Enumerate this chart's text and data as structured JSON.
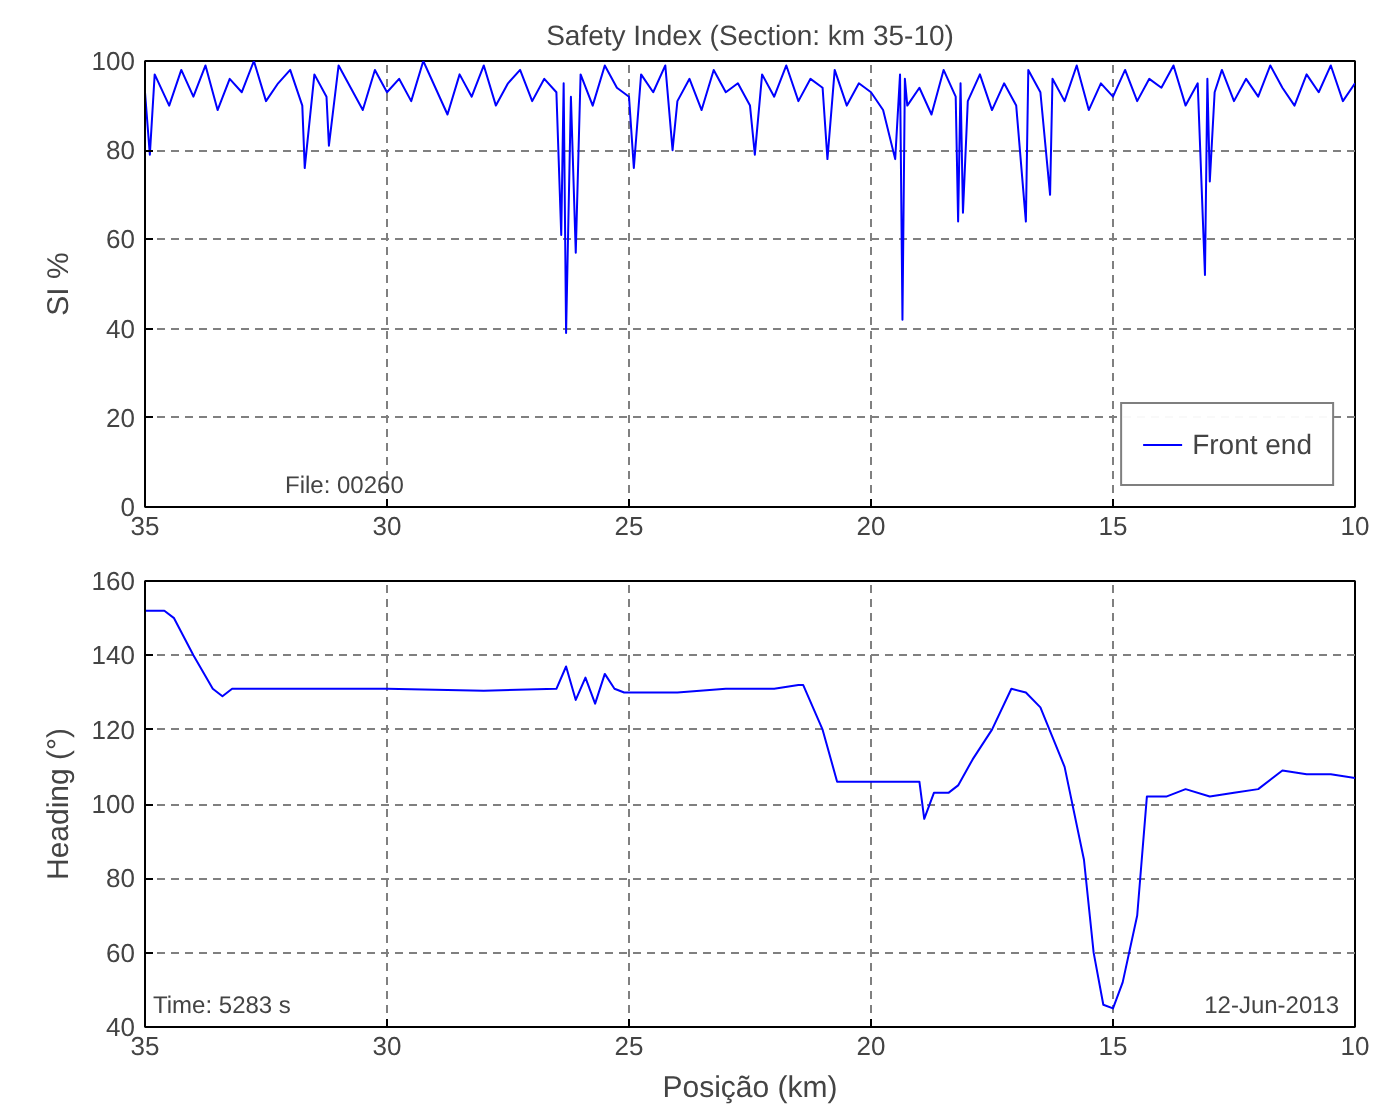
{
  "chart_data": [
    {
      "type": "line",
      "title": "Safety Index (Section: km 35-10)",
      "ylabel": "SI %",
      "xlim": [
        35,
        10
      ],
      "xticks": [
        35,
        30,
        25,
        20,
        15,
        10
      ],
      "ylim": [
        0,
        100
      ],
      "yticks": [
        0,
        20,
        40,
        60,
        80,
        100
      ],
      "grid": true,
      "legend": "bottom right",
      "line_style": "solid",
      "annotations": [
        "File: 00260"
      ],
      "series": [
        {
          "name": "Front end",
          "color": "#0000ff",
          "x": [
            35,
            34.9,
            34.8,
            34.5,
            34.25,
            34,
            33.75,
            33.5,
            33.25,
            33,
            32.75,
            32.5,
            32.25,
            32,
            31.75,
            31.7,
            31.5,
            31.25,
            31.2,
            31,
            30.75,
            30.5,
            30.25,
            30,
            29.75,
            29.5,
            29.25,
            29,
            28.75,
            28.5,
            28.25,
            28,
            27.75,
            27.5,
            27.25,
            27,
            26.75,
            26.5,
            26.4,
            26.35,
            26.3,
            26.2,
            26.1,
            26,
            25.75,
            25.5,
            25.25,
            25.0,
            24.9,
            24.75,
            24.5,
            24.25,
            24.1,
            24,
            23.75,
            23.5,
            23.25,
            23,
            22.75,
            22.5,
            22.4,
            22.25,
            22,
            21.75,
            21.5,
            21.25,
            21,
            20.9,
            20.75,
            20.5,
            20.25,
            20,
            19.75,
            19.5,
            19.4,
            19.35,
            19.3,
            19.25,
            19,
            18.75,
            18.5,
            18.25,
            18.2,
            18.15,
            18.1,
            18,
            17.75,
            17.5,
            17.25,
            17,
            16.8,
            16.75,
            16.5,
            16.3,
            16.25,
            16,
            15.75,
            15.5,
            15.25,
            15,
            14.75,
            14.5,
            14.25,
            14,
            13.75,
            13.5,
            13.25,
            13.1,
            13.05,
            13.0,
            12.9,
            12.75,
            12.5,
            12.25,
            12,
            11.75,
            11.5,
            11.25,
            11,
            10.75,
            10.5,
            10.25,
            10
          ],
          "values": [
            93,
            79,
            97,
            90,
            98,
            92,
            99,
            89,
            96,
            93,
            100,
            91,
            95,
            98,
            90,
            76,
            97,
            92,
            81,
            99,
            94,
            89,
            98,
            93,
            96,
            91,
            100,
            94,
            88,
            97,
            92,
            99,
            90,
            95,
            98,
            91,
            96,
            93,
            61,
            95,
            39,
            92,
            57,
            97,
            90,
            99,
            94,
            92,
            76,
            97,
            93,
            99,
            80,
            91,
            96,
            89,
            98,
            93,
            95,
            90,
            79,
            97,
            92,
            99,
            91,
            96,
            94,
            78,
            98,
            90,
            95,
            93,
            89,
            78,
            97,
            42,
            96,
            90,
            94,
            88,
            98,
            92,
            64,
            95,
            66,
            91,
            97,
            89,
            95,
            90,
            64,
            98,
            93,
            70,
            96,
            91,
            99,
            89,
            95,
            92,
            98,
            91,
            96,
            94,
            99,
            90,
            95,
            52,
            96,
            73,
            93,
            98,
            91,
            96,
            92,
            99,
            94,
            90,
            97,
            93,
            99,
            91,
            95
          ]
        }
      ]
    },
    {
      "type": "line",
      "xlabel": "Posição (km)",
      "ylabel": "Heading (°)",
      "xlim": [
        35,
        10
      ],
      "xticks": [
        35,
        30,
        25,
        20,
        15,
        10
      ],
      "ylim": [
        40,
        160
      ],
      "yticks": [
        40,
        60,
        80,
        100,
        120,
        140,
        160
      ],
      "grid": true,
      "line_style": "solid",
      "annotations": [
        "Time: 5283 s",
        "12-Jun-2013"
      ],
      "series": [
        {
          "color": "#0000ff",
          "x": [
            35,
            34.6,
            34.4,
            34.0,
            33.6,
            33.4,
            33.2,
            32,
            30,
            28,
            26.5,
            26.3,
            26.1,
            25.9,
            25.7,
            25.5,
            25.3,
            25.1,
            24,
            23,
            22,
            21.5,
            21.4,
            21.0,
            20.7,
            20,
            19.5,
            19.0,
            18.9,
            18.7,
            18.4,
            18.2,
            17.9,
            17.5,
            17.1,
            16.8,
            16.5,
            16.0,
            15.6,
            15.4,
            15.2,
            15.0,
            14.8,
            14.5,
            14.3,
            13.9,
            13.5,
            13.0,
            12.5,
            12.0,
            11.5,
            11.0,
            10.5,
            10
          ],
          "values": [
            152,
            152,
            150,
            140,
            131,
            129,
            131,
            131,
            131,
            130.5,
            131,
            137,
            128,
            134,
            127,
            135,
            131,
            130,
            130,
            131,
            131,
            132,
            132,
            120,
            106,
            106,
            106,
            106,
            96,
            103,
            103,
            105,
            112,
            120,
            131,
            130,
            126,
            110,
            85,
            60,
            46,
            45,
            52,
            70,
            102,
            102,
            104,
            102,
            103,
            104,
            109,
            108,
            108,
            107
          ]
        }
      ]
    }
  ]
}
